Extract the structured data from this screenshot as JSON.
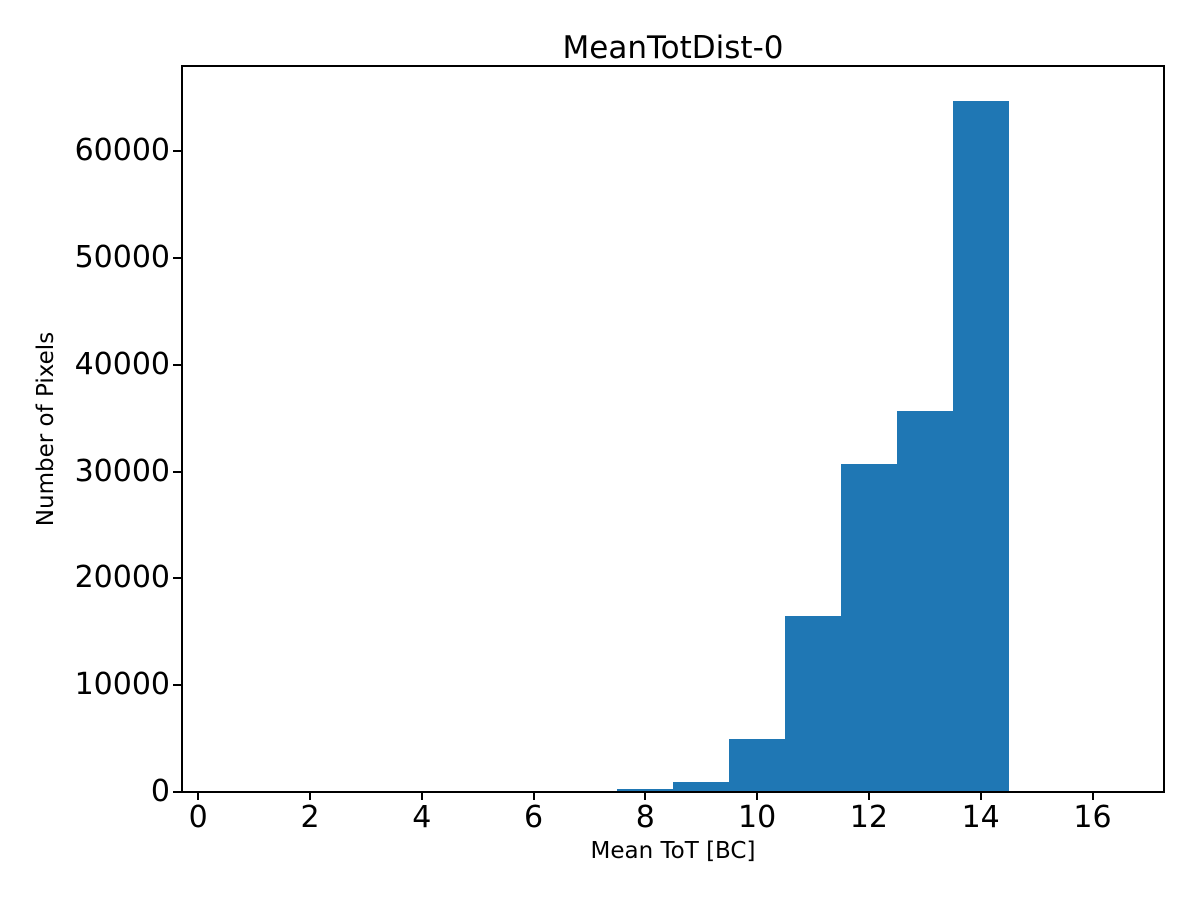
{
  "figure": {
    "title": "MeanTotDist-0"
  },
  "chart_data": {
    "type": "bar",
    "subtype": "histogram",
    "title": "MeanTotDist-0",
    "xlabel": "Mean ToT [BC]",
    "ylabel": "Number of Pixels",
    "bin_edges": [
      7.5,
      8.5,
      9.5,
      10.5,
      11.5,
      12.5,
      13.5,
      14.5
    ],
    "counts": [
      250,
      900,
      4950,
      16500,
      30700,
      35700,
      64700
    ],
    "bar_color": "#1f77b4",
    "axis_color": "#000000",
    "background_color": "#ffffff",
    "xticks": [
      0,
      2,
      4,
      6,
      8,
      10,
      12,
      14,
      16
    ],
    "yticks": [
      0,
      10000,
      20000,
      30000,
      40000,
      50000,
      60000
    ],
    "xlim": [
      -0.29,
      17.28
    ],
    "ylim": [
      0,
      67950
    ],
    "grid": false,
    "legend": null
  }
}
